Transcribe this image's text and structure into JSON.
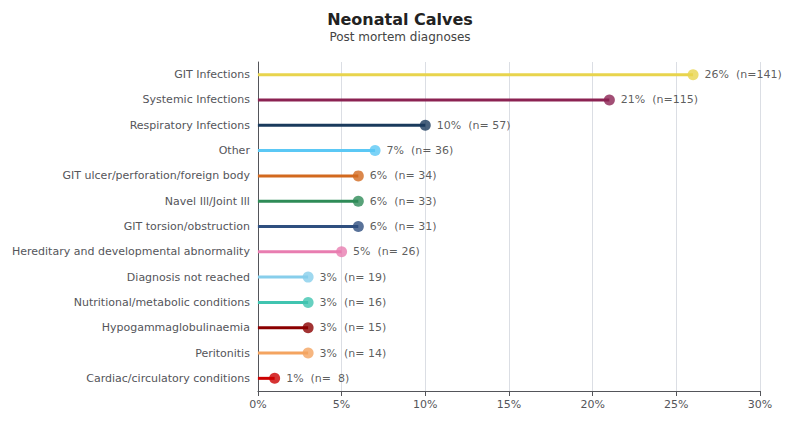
{
  "chart_data": {
    "type": "lollipop",
    "title": "Neonatal Calves",
    "subtitle": "Post mortem diagnoses",
    "orientation": "horizontal",
    "categories": [
      "GIT Infections",
      "Systemic Infections",
      "Respiratory Infections",
      "Other",
      "GIT ulcer/perforation/foreign body",
      "Navel Ill/Joint Ill",
      "GIT torsion/obstruction",
      "Hereditary and developmental abnormality",
      "Diagnosis not reached",
      "Nutritional/metabolic conditions",
      "Hypogammaglobulinaemia",
      "Peritonitis",
      "Cardiac/circulatory conditions"
    ],
    "values": [
      26,
      21,
      10,
      7,
      6,
      6,
      6,
      5,
      3,
      3,
      3,
      3,
      1
    ],
    "value_labels": [
      "26%  (n=141)",
      "21%  (n=115)",
      "10%  (n= 57)",
      "7%  (n= 36)",
      "6%  (n= 34)",
      "6%  (n= 33)",
      "6%  (n= 31)",
      "5%  (n= 26)",
      "3%  (n= 19)",
      "3%  (n= 16)",
      "3%  (n= 15)",
      "3%  (n= 14)",
      "1%  (n=  8)"
    ],
    "data_labels": true,
    "colors": [
      "#e8d44d",
      "#8b2252",
      "#1a3a5c",
      "#5bc8f5",
      "#d2691e",
      "#2e8b57",
      "#2f4f7f",
      "#e87db0",
      "#87ceeb",
      "#40c4b0",
      "#8b0000",
      "#f4a460",
      "#cc0000"
    ],
    "xlim": [
      0,
      30
    ],
    "xticks": [
      {
        "value": 0,
        "label": "0%"
      },
      {
        "value": 5,
        "label": "5%"
      },
      {
        "value": 10,
        "label": "10%"
      },
      {
        "value": 15,
        "label": "15%"
      },
      {
        "value": 20,
        "label": "20%"
      },
      {
        "value": 25,
        "label": "25%"
      },
      {
        "value": 30,
        "label": "30%"
      }
    ],
    "grid": true
  }
}
